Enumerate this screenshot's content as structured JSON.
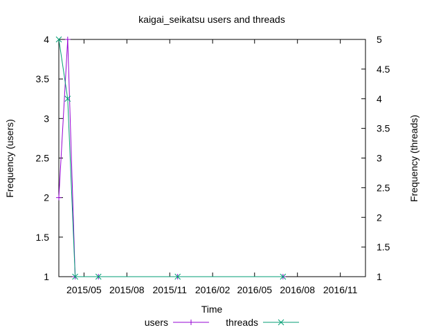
{
  "chart_data": {
    "type": "line",
    "title": "kaigai_seikatsu users and threads",
    "xlabel": "Time",
    "ylabel": "Frequency (users)",
    "y2label": "Frequency (threads)",
    "x_range": [
      "2015-03-08",
      "2016-12-25"
    ],
    "x_ticks": [
      "2015/05",
      "2015/08",
      "2015/11",
      "2016/02",
      "2016/05",
      "2016/08",
      "2016/11"
    ],
    "x_tick_dates": [
      "2015-05-01",
      "2015-08-01",
      "2015-11-01",
      "2016-02-01",
      "2016-05-01",
      "2016-08-01",
      "2016-11-01"
    ],
    "y_range": [
      1,
      4
    ],
    "y_ticks": [
      "1",
      "1.5",
      "2",
      "2.5",
      "3",
      "3.5",
      "4"
    ],
    "y2_range": [
      1,
      5
    ],
    "y2_ticks": [
      "1",
      "1.5",
      "2",
      "2.5",
      "3",
      "3.5",
      "4",
      "4.5",
      "5"
    ],
    "grid": false,
    "legend_position": "bottom",
    "series": [
      {
        "name": "users",
        "axis": "left",
        "color": "#9400d3",
        "marker": "plus",
        "x": [
          "2015-03-08",
          "2015-03-27",
          "2015-04-12",
          "2015-06-01",
          "2015-11-18",
          "2016-07-01"
        ],
        "y": [
          2,
          4,
          1,
          1,
          1,
          1
        ]
      },
      {
        "name": "threads",
        "axis": "right",
        "color": "#009e73",
        "marker": "cross",
        "x": [
          "2015-03-08",
          "2015-03-27",
          "2015-04-12",
          "2015-06-01",
          "2015-11-18",
          "2016-07-01"
        ],
        "y": [
          5,
          4,
          1,
          1,
          1,
          1
        ]
      }
    ]
  }
}
